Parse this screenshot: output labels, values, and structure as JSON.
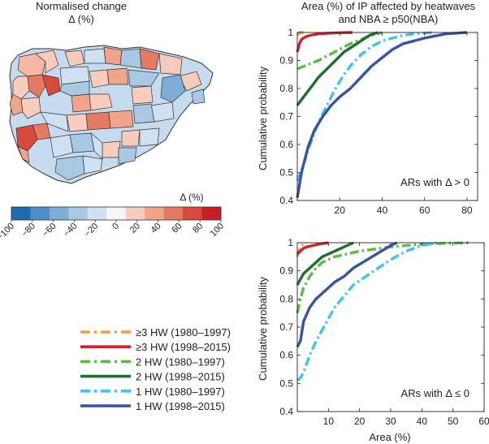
{
  "map": {
    "title_line1": "Normalised change",
    "title_line2": "Δ (%)",
    "colorbar_label": "Δ (%)",
    "colorbar_ticks": [
      "−100",
      "−80",
      "−60",
      "−40",
      "−20",
      "0",
      "20",
      "40",
      "60",
      "80",
      "100"
    ],
    "colorbar_colors": [
      "#1f6bb0",
      "#4d8fc6",
      "#7eaed6",
      "#a8c8e4",
      "#cfe0f0",
      "#f6f6f6",
      "#f8cdbd",
      "#f0a58a",
      "#e57a62",
      "#d84a3d",
      "#c81e25"
    ]
  },
  "chart_data": [
    {
      "type": "line",
      "title": "Area (%) of IP affected by heatwaves and NBA ≥ p50(NBA)",
      "title_line1": "Area (%) of IP affected by heatwaves",
      "title_line2": "and NBA ≥ p50(NBA)",
      "annotation": "ARs with Δ > 0",
      "xlabel": "",
      "ylabel": "Cumulative probability",
      "xlim": [
        0,
        85
      ],
      "ylim": [
        0.4,
        1.0
      ],
      "xticks": [
        20,
        40,
        60,
        80
      ],
      "yticks": [
        0.4,
        0.5,
        0.6,
        0.7,
        0.8,
        0.9,
        1
      ],
      "ytick_labels": [
        "0.4",
        "0.5",
        "0.6",
        "0.7",
        "0.8",
        "0.9",
        "1"
      ],
      "series": [
        {
          "name": "≥3 HW (1980–1997)",
          "color": "#f5a03c",
          "dash": "dashdot",
          "x": [
            0,
            0.5,
            1,
            2,
            3
          ],
          "y": [
            0.99,
            0.995,
            1.0,
            1.0,
            1.0
          ]
        },
        {
          "name": "≥3 HW (1998–2015)",
          "color": "#d62026",
          "dash": "solid",
          "x": [
            0,
            0.5,
            1,
            2,
            4,
            6,
            10,
            14,
            20,
            26
          ],
          "y": [
            0.93,
            0.945,
            0.96,
            0.975,
            0.985,
            0.99,
            0.995,
            0.997,
            0.999,
            1.0
          ]
        },
        {
          "name": "2 HW (1980–1997)",
          "color": "#5cba47",
          "dash": "dashdot",
          "x": [
            0,
            5,
            10,
            15,
            20,
            25,
            30,
            35,
            40
          ],
          "y": [
            0.87,
            0.885,
            0.9,
            0.92,
            0.94,
            0.96,
            0.975,
            0.99,
            1.0
          ]
        },
        {
          "name": "2 HW (1998–2015)",
          "color": "#1f6e2e",
          "dash": "solid",
          "x": [
            0,
            3,
            6,
            10,
            14,
            18,
            22,
            26,
            30,
            34,
            38
          ],
          "y": [
            0.74,
            0.77,
            0.8,
            0.84,
            0.87,
            0.9,
            0.93,
            0.95,
            0.97,
            0.99,
            1.0
          ]
        },
        {
          "name": "1 HW (1980–1997)",
          "color": "#3fc4ee",
          "dash": "dashdot",
          "x": [
            0,
            3,
            6,
            10,
            14,
            18,
            22,
            26,
            30,
            35,
            40,
            45,
            50,
            55,
            60,
            65
          ],
          "y": [
            0.47,
            0.53,
            0.6,
            0.68,
            0.74,
            0.8,
            0.85,
            0.89,
            0.92,
            0.95,
            0.97,
            0.98,
            0.99,
            0.995,
            0.998,
            1.0
          ]
        },
        {
          "name": "1 HW (1998–2015)",
          "color": "#3953a4",
          "dash": "solid",
          "x": [
            0,
            2,
            5,
            8,
            12,
            16,
            20,
            25,
            30,
            35,
            40,
            45,
            50,
            55,
            60,
            70,
            80
          ],
          "y": [
            0.41,
            0.5,
            0.59,
            0.65,
            0.7,
            0.74,
            0.77,
            0.8,
            0.84,
            0.88,
            0.91,
            0.94,
            0.96,
            0.97,
            0.98,
            0.995,
            1.0
          ]
        }
      ]
    },
    {
      "type": "line",
      "title": "",
      "annotation": "ARs with Δ ≤ 0",
      "xlabel": "Area (%)",
      "ylabel": "Cumulative probability",
      "xlim": [
        0,
        60
      ],
      "ylim": [
        0.4,
        1.0
      ],
      "xticks": [
        10,
        20,
        30,
        40,
        50,
        60
      ],
      "yticks": [
        0.4,
        0.5,
        0.6,
        0.7,
        0.8,
        0.9,
        1
      ],
      "ytick_labels": [
        "0.4",
        "0.5",
        "0.6",
        "0.7",
        "0.8",
        "0.9",
        "1"
      ],
      "series": [
        {
          "name": "≥3 HW (1980–1997)",
          "color": "#f5a03c",
          "dash": "dashdot",
          "x": [
            0,
            0.5,
            1,
            2,
            3
          ],
          "y": [
            0.95,
            0.97,
            0.985,
            0.995,
            1.0
          ]
        },
        {
          "name": "≥3 HW (1998–2015)",
          "color": "#d62026",
          "dash": "solid",
          "x": [
            0,
            1,
            2,
            3,
            5,
            7,
            10
          ],
          "y": [
            0.96,
            0.97,
            0.98,
            0.985,
            0.99,
            0.995,
            1.0
          ]
        },
        {
          "name": "2 HW (1980–1997)",
          "color": "#5cba47",
          "dash": "dashdot",
          "x": [
            0,
            1,
            2,
            4,
            6,
            8,
            12,
            16,
            20,
            30,
            40,
            55
          ],
          "y": [
            0.75,
            0.8,
            0.84,
            0.88,
            0.91,
            0.93,
            0.95,
            0.96,
            0.97,
            0.985,
            0.995,
            1.0
          ]
        },
        {
          "name": "2 HW (1998–2015)",
          "color": "#1f6e2e",
          "dash": "solid",
          "x": [
            0,
            1,
            2,
            4,
            6,
            8,
            10,
            12,
            14,
            16,
            18
          ],
          "y": [
            0.85,
            0.87,
            0.89,
            0.91,
            0.93,
            0.95,
            0.96,
            0.97,
            0.98,
            0.99,
            1.0
          ]
        },
        {
          "name": "1 HW (1980–1997)",
          "color": "#3fc4ee",
          "dash": "dashdot",
          "x": [
            0,
            1,
            2,
            3,
            4,
            6,
            8,
            10,
            12,
            15,
            18,
            22,
            26,
            30,
            35,
            40,
            45
          ],
          "y": [
            0.51,
            0.52,
            0.54,
            0.57,
            0.6,
            0.65,
            0.69,
            0.73,
            0.77,
            0.81,
            0.85,
            0.88,
            0.91,
            0.94,
            0.97,
            0.99,
            1.0
          ]
        },
        {
          "name": "1 HW (1998–2015)",
          "color": "#3953a4",
          "dash": "solid",
          "x": [
            0,
            1,
            2,
            4,
            6,
            8,
            10,
            12,
            15,
            18,
            21,
            24,
            27,
            30,
            32
          ],
          "y": [
            0.63,
            0.65,
            0.72,
            0.77,
            0.8,
            0.82,
            0.84,
            0.86,
            0.88,
            0.91,
            0.93,
            0.95,
            0.97,
            0.99,
            1.0
          ]
        }
      ]
    }
  ],
  "legend": [
    {
      "label": "≥3 HW (1980–1997)",
      "color": "#f5a03c",
      "dash": "dashdot"
    },
    {
      "label": "≥3 HW (1998–2015)",
      "color": "#d62026",
      "dash": "solid"
    },
    {
      "label": "2 HW (1980–1997)",
      "color": "#5cba47",
      "dash": "dashdot"
    },
    {
      "label": "2 HW (1998–2015)",
      "color": "#1f6e2e",
      "dash": "solid"
    },
    {
      "label": "1 HW (1980–1997)",
      "color": "#3fc4ee",
      "dash": "dashdot"
    },
    {
      "label": "1 HW (1998–2015)",
      "color": "#3953a4",
      "dash": "solid"
    }
  ]
}
